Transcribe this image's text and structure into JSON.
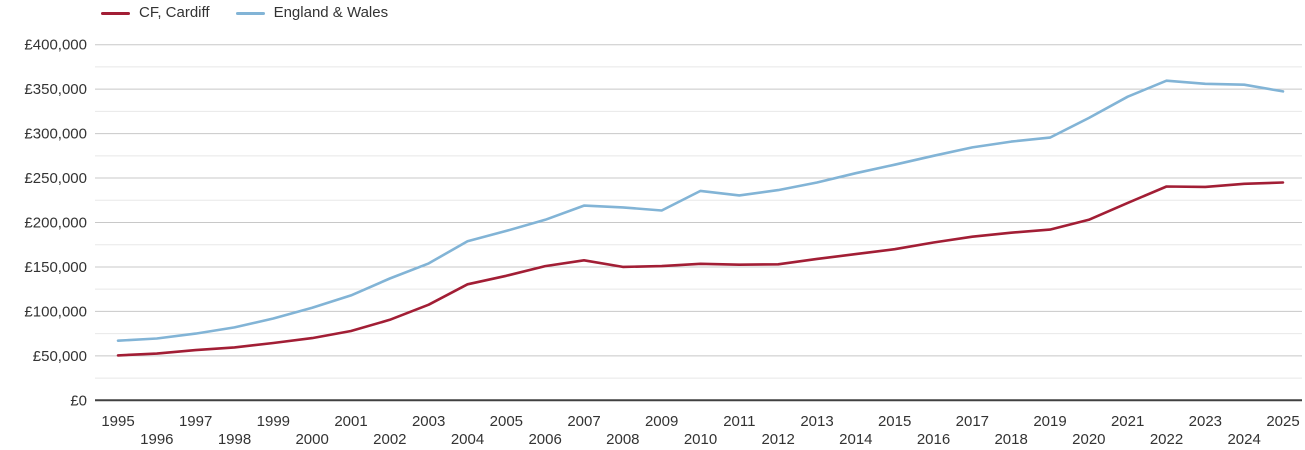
{
  "chart_data": {
    "type": "line",
    "title": "",
    "xlabel": "",
    "ylabel": "",
    "currency_prefix": "£",
    "x": [
      1995,
      1996,
      1997,
      1998,
      1999,
      2000,
      2001,
      2002,
      2003,
      2004,
      2005,
      2006,
      2007,
      2008,
      2009,
      2010,
      2011,
      2012,
      2013,
      2014,
      2015,
      2016,
      2017,
      2018,
      2019,
      2020,
      2021,
      2022,
      2023,
      2024,
      2025
    ],
    "series": [
      {
        "name": "CF, Cardiff",
        "color": "#a21e35",
        "values": [
          50500,
          52500,
          56500,
          59500,
          64500,
          70000,
          78000,
          90500,
          107500,
          130500,
          140000,
          151000,
          157500,
          150000,
          151000,
          153500,
          152500,
          153000,
          159000,
          164500,
          170000,
          177500,
          184000,
          188500,
          192000,
          203000,
          222000,
          240500,
          240000,
          243500,
          245000
        ]
      },
      {
        "name": "England & Wales",
        "color": "#82b4d6",
        "values": [
          67000,
          69500,
          75000,
          82000,
          92000,
          104000,
          118000,
          137000,
          154000,
          179000,
          190500,
          203000,
          219000,
          217000,
          213500,
          235500,
          230500,
          236500,
          245000,
          255500,
          265000,
          275000,
          284500,
          291000,
          295500,
          317500,
          341500,
          359500,
          356000,
          355000,
          347500
        ]
      }
    ],
    "ylim": [
      0,
      400000
    ],
    "y_major_step": 50000,
    "y_minor_step": 25000,
    "grid": "horizontal",
    "legend_position": "top-left",
    "y_tick_labels": [
      "£0",
      "£50,000",
      "£100,000",
      "£150,000",
      "£200,000",
      "£250,000",
      "£300,000",
      "£350,000",
      "£400,000"
    ],
    "x_tick_labels": [
      "1995",
      "1996",
      "1997",
      "1998",
      "1999",
      "2000",
      "2001",
      "2002",
      "2003",
      "2004",
      "2005",
      "2006",
      "2007",
      "2008",
      "2009",
      "2010",
      "2011",
      "2012",
      "2013",
      "2014",
      "2015",
      "2016",
      "2017",
      "2018",
      "2019",
      "2020",
      "2021",
      "2022",
      "2023",
      "2024",
      "2025"
    ]
  },
  "legend": {
    "items": [
      {
        "label": "CF, Cardiff",
        "color": "#a21e35"
      },
      {
        "label": "England & Wales",
        "color": "#82b4d6"
      }
    ]
  },
  "colors": {
    "major_gridline": "#c8c8c8",
    "minor_gridline": "#e8e8e8",
    "axis_line": "#404040",
    "label_text": "#333333",
    "background": "#ffffff"
  }
}
